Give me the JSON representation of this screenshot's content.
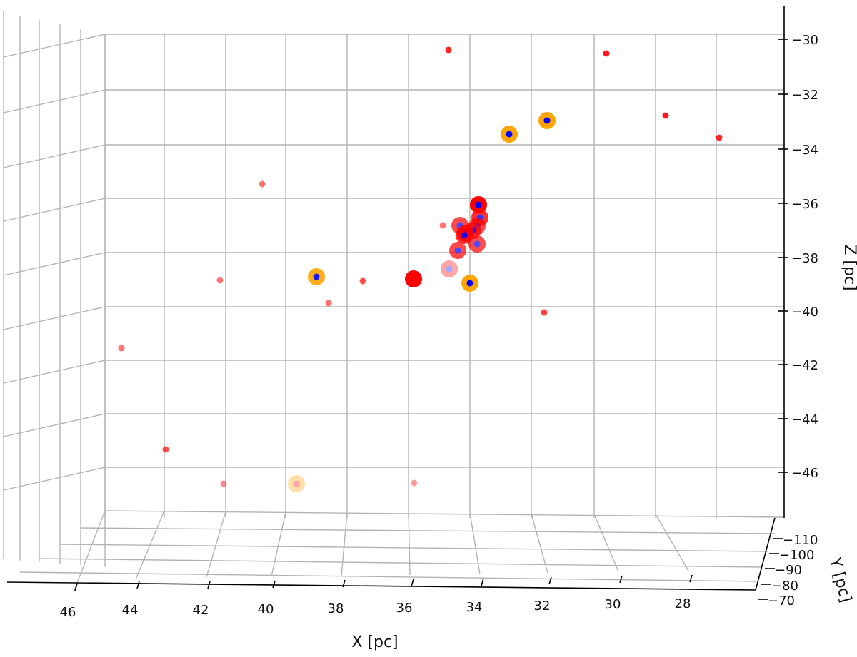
{
  "chart_data": {
    "type": "scatter",
    "projection": "3d",
    "title": "",
    "xlabel": "X [pc]",
    "ylabel": "Y [pc]",
    "zlabel": "Z [pc]",
    "xlim": [
      27,
      48
    ],
    "ylim": [
      -70,
      -110
    ],
    "zlim": [
      -47.5,
      -29.5
    ],
    "x_ticks": [
      "46",
      "44",
      "42",
      "40",
      "38",
      "36",
      "34",
      "32",
      "30",
      "28"
    ],
    "y_ticks": [
      "−110",
      "−100",
      "−90",
      "−80",
      "−70"
    ],
    "z_ticks": [
      "−30",
      "−32",
      "−34",
      "−36",
      "−38",
      "−40",
      "−42",
      "−44",
      "−46"
    ],
    "grid": true,
    "colors": {
      "red_point": "#ff0000",
      "orange_ring": "#ffa500",
      "blue_core": "#0000ff",
      "grid": "#b3b3b3"
    },
    "points": [
      {
        "screen_x": 628,
        "screen_y": 70,
        "kind": "red",
        "size": "small",
        "alpha": 0.85
      },
      {
        "screen_x": 849,
        "screen_y": 75,
        "kind": "red",
        "size": "small",
        "alpha": 0.9
      },
      {
        "screen_x": 932,
        "screen_y": 162,
        "kind": "red",
        "size": "small",
        "alpha": 0.9
      },
      {
        "screen_x": 1007,
        "screen_y": 193,
        "kind": "red",
        "size": "small",
        "alpha": 0.85
      },
      {
        "screen_x": 766,
        "screen_y": 169,
        "kind": "orange-ring",
        "size": "medium",
        "alpha": 1.0
      },
      {
        "screen_x": 713,
        "screen_y": 188,
        "kind": "orange-ring",
        "size": "medium",
        "alpha": 1.0
      },
      {
        "screen_x": 367,
        "screen_y": 258,
        "kind": "red",
        "size": "small",
        "alpha": 0.55
      },
      {
        "screen_x": 308,
        "screen_y": 393,
        "kind": "red",
        "size": "small",
        "alpha": 0.55
      },
      {
        "screen_x": 508,
        "screen_y": 394,
        "kind": "red",
        "size": "small",
        "alpha": 0.7
      },
      {
        "screen_x": 460,
        "screen_y": 425,
        "kind": "red",
        "size": "small",
        "alpha": 0.55
      },
      {
        "screen_x": 170,
        "screen_y": 488,
        "kind": "red",
        "size": "small",
        "alpha": 0.55
      },
      {
        "screen_x": 762,
        "screen_y": 438,
        "kind": "red",
        "size": "small",
        "alpha": 0.75
      },
      {
        "screen_x": 232,
        "screen_y": 630,
        "kind": "red",
        "size": "small",
        "alpha": 0.7
      },
      {
        "screen_x": 313,
        "screen_y": 678,
        "kind": "red",
        "size": "small",
        "alpha": 0.45
      },
      {
        "screen_x": 580,
        "screen_y": 677,
        "kind": "red",
        "size": "small",
        "alpha": 0.4
      },
      {
        "screen_x": 620,
        "screen_y": 316,
        "kind": "red",
        "size": "small",
        "alpha": 0.55
      },
      {
        "screen_x": 443,
        "screen_y": 388,
        "kind": "orange-ring",
        "size": "medium",
        "alpha": 0.9
      },
      {
        "screen_x": 658,
        "screen_y": 397,
        "kind": "orange-ring",
        "size": "medium",
        "alpha": 1.0
      },
      {
        "screen_x": 415,
        "screen_y": 678,
        "kind": "orange-ring",
        "size": "medium",
        "alpha": 0.35
      },
      {
        "screen_x": 629,
        "screen_y": 377,
        "kind": "red-ring",
        "size": "medium",
        "alpha": 0.35
      },
      {
        "screen_x": 579,
        "screen_y": 391,
        "kind": "red",
        "size": "large",
        "alpha": 1.0
      },
      {
        "screen_x": 670,
        "screen_y": 287,
        "kind": "red-ring",
        "size": "medium",
        "alpha": 1.0
      },
      {
        "screen_x": 672,
        "screen_y": 305,
        "kind": "red-ring",
        "size": "medium",
        "alpha": 0.8
      },
      {
        "screen_x": 644,
        "screen_y": 316,
        "kind": "red-ring",
        "size": "medium",
        "alpha": 0.7
      },
      {
        "screen_x": 668,
        "screen_y": 317,
        "kind": "red-ring",
        "size": "medium",
        "alpha": 0.7
      },
      {
        "screen_x": 662,
        "screen_y": 323,
        "kind": "red-ring",
        "size": "medium",
        "alpha": 0.75
      },
      {
        "screen_x": 652,
        "screen_y": 327,
        "kind": "red-ring",
        "size": "medium",
        "alpha": 0.8
      },
      {
        "screen_x": 650,
        "screen_y": 330,
        "kind": "red-ring",
        "size": "medium",
        "alpha": 0.8
      },
      {
        "screen_x": 668,
        "screen_y": 342,
        "kind": "red-ring",
        "size": "medium",
        "alpha": 0.7
      },
      {
        "screen_x": 641,
        "screen_y": 351,
        "kind": "red-ring",
        "size": "medium",
        "alpha": 0.7
      }
    ]
  }
}
